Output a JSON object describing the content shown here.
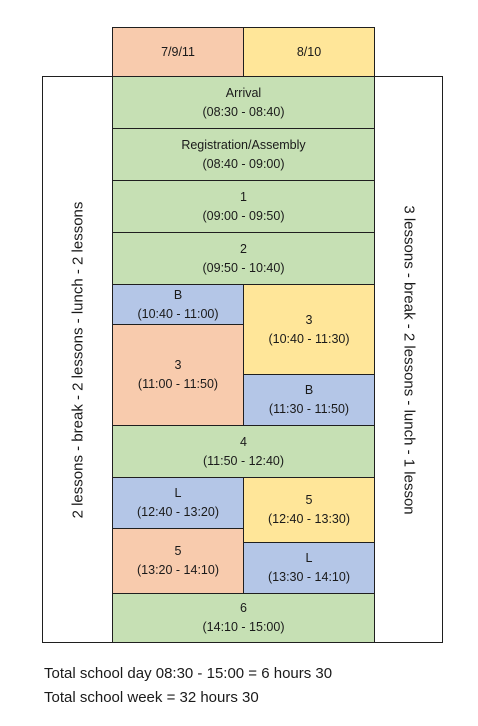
{
  "headers": {
    "left": "7/9/11",
    "right": "8/10"
  },
  "side_notes": {
    "left": "2 lessons - break - 2 lessons - lunch - 2 lessons",
    "right": "3 lessons - break - 2 lessons - lunch - 1 lesson"
  },
  "blocks": {
    "arrival": {
      "name": "Arrival",
      "time": "(08:30 - 08:40)"
    },
    "registration": {
      "name": "Registration/Assembly",
      "time": "(08:40 - 09:00)"
    },
    "lesson1": {
      "name": "1",
      "time": "(09:00 - 09:50)"
    },
    "lesson2": {
      "name": "2",
      "time": "(09:50 - 10:40)"
    },
    "break_left": {
      "name": "B",
      "time": "(10:40 - 11:00)"
    },
    "lesson3_left": {
      "name": "3",
      "time": "(11:00 - 11:50)"
    },
    "lesson3_right": {
      "name": "3",
      "time": "(10:40 - 11:30)"
    },
    "break_right": {
      "name": "B",
      "time": "(11:30 - 11:50)"
    },
    "lesson4": {
      "name": "4",
      "time": "(11:50 - 12:40)"
    },
    "lunch_left": {
      "name": "L",
      "time": "(12:40 - 13:20)"
    },
    "lesson5_left": {
      "name": "5",
      "time": "(13:20 - 14:10)"
    },
    "lesson5_right": {
      "name": "5",
      "time": "(12:40 - 13:30)"
    },
    "lunch_right": {
      "name": "L",
      "time": "(13:30 - 14:10)"
    },
    "lesson6": {
      "name": "6",
      "time": "(14:10 - 15:00)"
    }
  },
  "footer": {
    "line1": "Total school day 08:30 - 15:00 = 6 hours 30",
    "line2": "Total school week = 32 hours 30"
  },
  "colors": {
    "green": "#c6e0b4",
    "orange": "#f8cbad",
    "yellow": "#ffe699",
    "blue": "#b4c6e7"
  }
}
